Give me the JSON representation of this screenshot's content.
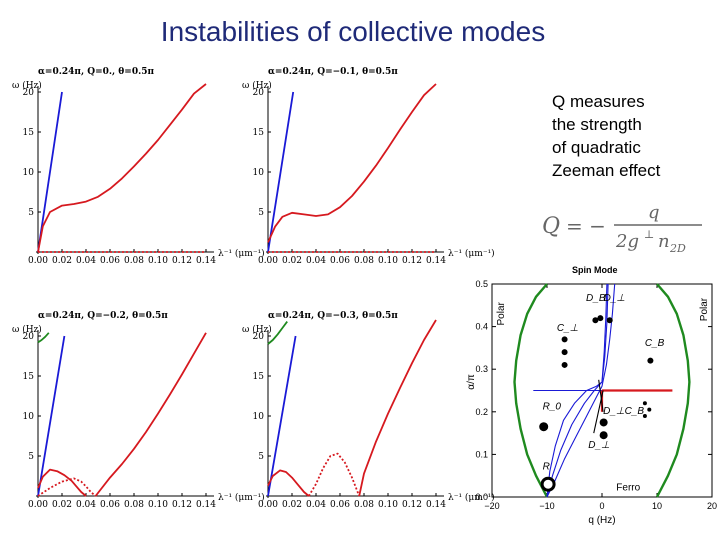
{
  "slide": {
    "title": "Instabilities of collective modes",
    "note_lines": [
      "Q measures",
      "the strength",
      "of quadratic",
      "Zeeman effect"
    ]
  },
  "formula": {
    "lhs": "Q",
    "eq": "= −",
    "numerator": "q",
    "den_main": "2g",
    "den_sup": "⊥",
    "den_n": "n",
    "den_sub": "2D"
  },
  "colors": {
    "blue": "#1a1ad6",
    "red": "#d6191f",
    "green": "#1f8a1f",
    "axis": "#000000"
  },
  "chart_data": [
    {
      "type": "line",
      "title": "α=0.24π, Q=0., θ=0.5π",
      "ylabel": "ω (Hz)",
      "xlabel": "λ⁻¹ (μm⁻¹)",
      "xlim": [
        0,
        0.14
      ],
      "ylim": [
        0,
        20
      ],
      "xticks": [
        "0.00",
        "0.02",
        "0.04",
        "0.06",
        "0.08",
        "0.10",
        "0.12",
        "0.14"
      ],
      "yticks": [
        "5",
        "10",
        "15",
        "20"
      ],
      "series": [
        {
          "color": "blue",
          "style": "solid",
          "x": [
            0,
            0.02
          ],
          "y": [
            0,
            20
          ]
        },
        {
          "color": "red",
          "style": "solid",
          "x": [
            0,
            0.004,
            0.01,
            0.02,
            0.03,
            0.04,
            0.05,
            0.06,
            0.07,
            0.08,
            0.09,
            0.1,
            0.11,
            0.12,
            0.13,
            0.14
          ],
          "y": [
            0,
            3.2,
            5.0,
            5.8,
            6.0,
            6.3,
            6.9,
            7.9,
            9.2,
            10.7,
            12.3,
            14.0,
            15.9,
            17.8,
            19.8,
            21.0
          ]
        },
        {
          "color": "red",
          "style": "dotted",
          "x": [
            0,
            0.14
          ],
          "y": [
            0,
            0
          ]
        }
      ]
    },
    {
      "type": "line",
      "title": "α=0.24π, Q=−0.1, θ=0.5π",
      "ylabel": "ω (Hz)",
      "xlabel": "λ⁻¹ (μm⁻¹)",
      "xlim": [
        0,
        0.14
      ],
      "ylim": [
        0,
        20
      ],
      "xticks": [
        "0.00",
        "0.02",
        "0.04",
        "0.06",
        "0.08",
        "0.10",
        "0.12",
        "0.14"
      ],
      "yticks": [
        "5",
        "10",
        "15",
        "20"
      ],
      "series": [
        {
          "color": "blue",
          "style": "solid",
          "x": [
            0,
            0.021
          ],
          "y": [
            0,
            20
          ]
        },
        {
          "color": "red",
          "style": "solid",
          "x": [
            0,
            0.006,
            0.012,
            0.02,
            0.03,
            0.04,
            0.05,
            0.06,
            0.07,
            0.08,
            0.09,
            0.1,
            0.11,
            0.12,
            0.13,
            0.14
          ],
          "y": [
            1.2,
            3.2,
            4.4,
            4.9,
            4.7,
            4.5,
            4.7,
            5.6,
            7.0,
            8.8,
            10.8,
            13.0,
            15.3,
            17.5,
            19.6,
            21.0
          ]
        },
        {
          "color": "red",
          "style": "dotted",
          "x": [
            0,
            0.14
          ],
          "y": [
            0,
            0
          ]
        }
      ]
    },
    {
      "type": "line",
      "title": "α=0.24π, Q=−0.2, θ=0.5π",
      "ylabel": "ω (Hz)",
      "xlabel": "λ⁻¹ (μm⁻¹)",
      "xlim": [
        0,
        0.14
      ],
      "ylim": [
        0,
        20
      ],
      "xticks": [
        "0.00",
        "0.02",
        "0.04",
        "0.06",
        "0.08",
        "0.10",
        "0.12",
        "0.14"
      ],
      "yticks": [
        "5",
        "10",
        "15",
        "20"
      ],
      "series": [
        {
          "color": "blue",
          "style": "solid",
          "x": [
            0,
            0.022
          ],
          "y": [
            0,
            20
          ]
        },
        {
          "color": "red",
          "style": "solid",
          "x": [
            0,
            0.004,
            0.01,
            0.016,
            0.022,
            0.028,
            0.032,
            0.036,
            0.04
          ],
          "y": [
            1.0,
            2.4,
            3.3,
            3.1,
            2.6,
            1.9,
            1.2,
            0.5,
            0
          ]
        },
        {
          "color": "red",
          "style": "dotted",
          "x": [
            0,
            0.01,
            0.02,
            0.03,
            0.036,
            0.04,
            0.044,
            0.048
          ],
          "y": [
            0,
            1.0,
            1.8,
            2.2,
            1.8,
            1.2,
            0.5,
            0
          ]
        },
        {
          "color": "red",
          "style": "solid",
          "x": [
            0.048,
            0.06,
            0.07,
            0.08,
            0.09,
            0.1,
            0.11,
            0.12,
            0.13,
            0.14
          ],
          "y": [
            0,
            2.3,
            4.0,
            5.9,
            8.0,
            10.3,
            12.7,
            15.2,
            17.8,
            20.4
          ]
        },
        {
          "color": "green",
          "style": "solid",
          "x": [
            0,
            0.003,
            0.006,
            0.009
          ],
          "y": [
            19.2,
            19.5,
            19.9,
            20.4
          ]
        }
      ]
    },
    {
      "type": "line",
      "title": "α=0.24π, Q=−0.3, θ=0.5π",
      "ylabel": "ω (Hz)",
      "xlabel": "λ⁻¹ (μm⁻¹)",
      "xlim": [
        0,
        0.14
      ],
      "ylim": [
        0,
        20
      ],
      "xticks": [
        "0.00",
        "0.02",
        "0.04",
        "0.06",
        "0.08",
        "0.10",
        "0.12",
        "0.14"
      ],
      "yticks": [
        "5",
        "10",
        "15",
        "20"
      ],
      "series": [
        {
          "color": "blue",
          "style": "solid",
          "x": [
            0,
            0.023
          ],
          "y": [
            0,
            20
          ]
        },
        {
          "color": "red",
          "style": "solid",
          "x": [
            0,
            0.004,
            0.01,
            0.015,
            0.02,
            0.025,
            0.03,
            0.034
          ],
          "y": [
            1.3,
            2.5,
            3.2,
            3.0,
            2.3,
            1.4,
            0.5,
            0
          ]
        },
        {
          "color": "red",
          "style": "dotted",
          "x": [
            0.034,
            0.04,
            0.046,
            0.052,
            0.058,
            0.064,
            0.07,
            0.076
          ],
          "y": [
            0,
            1.5,
            3.5,
            5.0,
            5.3,
            4.2,
            2.3,
            0
          ]
        },
        {
          "color": "red",
          "style": "solid",
          "x": [
            0.076,
            0.08,
            0.09,
            0.1,
            0.11,
            0.12,
            0.13,
            0.14
          ],
          "y": [
            0,
            2.8,
            6.8,
            10.3,
            13.5,
            16.6,
            19.5,
            22.0
          ]
        },
        {
          "color": "green",
          "style": "solid",
          "x": [
            0,
            0.004,
            0.008,
            0.012,
            0.016
          ],
          "y": [
            19.0,
            19.5,
            20.2,
            21.0,
            21.8
          ]
        }
      ]
    },
    {
      "type": "line",
      "title": "Spin Mode",
      "xlabel": "q (Hz)",
      "ylabel": "α/π",
      "xlim": [
        -20,
        20
      ],
      "ylim": [
        0,
        0.5
      ],
      "xticks": [
        "−20",
        "−10",
        "0",
        "10",
        "20"
      ],
      "yticks": [
        "0.0",
        "0.1",
        "0.2",
        "0.3",
        "0.4",
        "0.5"
      ],
      "region_labels": [
        "Polar",
        "Polar",
        "Ferro"
      ],
      "mode_labels": [
        "D_B",
        "D_⊥",
        "C_⊥",
        "C_B",
        "R_0",
        "D_⊥C_B",
        "D_⊥",
        "R"
      ],
      "series": [
        {
          "color": "green",
          "style": "solid",
          "x": [
            -10.0,
            -12.0,
            -13.6,
            -14.8,
            -15.6,
            -15.9,
            -15.6,
            -14.8,
            -13.6,
            -12.0,
            -10.0
          ],
          "y": [
            0.0,
            0.05,
            0.1,
            0.16,
            0.22,
            0.27,
            0.32,
            0.38,
            0.43,
            0.47,
            0.5
          ]
        },
        {
          "color": "green",
          "style": "solid",
          "x": [
            10.0,
            12.0,
            13.6,
            14.8,
            15.6,
            15.9,
            15.6,
            14.8,
            13.6,
            12.0,
            10.0
          ],
          "y": [
            0.0,
            0.05,
            0.1,
            0.16,
            0.22,
            0.27,
            0.32,
            0.38,
            0.43,
            0.47,
            0.5
          ]
        },
        {
          "color": "blue",
          "style": "solid",
          "x": [
            -12.5,
            12
          ],
          "y": [
            0.25,
            0.25
          ]
        },
        {
          "color": "red",
          "style": "solid",
          "x": [
            0,
            12.8
          ],
          "y": [
            0.25,
            0.25
          ]
        },
        {
          "color": "red",
          "style": "solid",
          "x": [
            0,
            0
          ],
          "y": [
            0.25,
            0.2
          ]
        },
        {
          "color": "blue",
          "style": "solid",
          "x": [
            -10,
            -8.5,
            -6.8,
            -4.8,
            -2.8,
            -1.2,
            0,
            0.8,
            1.4,
            1.9,
            2.3
          ],
          "y": [
            0.0,
            0.04,
            0.09,
            0.14,
            0.19,
            0.23,
            0.26,
            0.31,
            0.37,
            0.43,
            0.5
          ]
        },
        {
          "color": "blue",
          "style": "solid",
          "x": [
            -10,
            -9.0,
            -7.5,
            -5.5,
            -3.2,
            -1.4,
            0,
            0.5,
            0.9,
            1.1
          ],
          "y": [
            0.0,
            0.05,
            0.11,
            0.17,
            0.22,
            0.25,
            0.27,
            0.33,
            0.41,
            0.5
          ]
        },
        {
          "color": "blue",
          "style": "solid",
          "x": [
            -10,
            -9.5,
            -8.5,
            -7.0,
            -5.0,
            -2.8,
            -1.0,
            0
          ],
          "y": [
            0.0,
            0.06,
            0.12,
            0.18,
            0.22,
            0.25,
            0.26,
            0.27
          ]
        },
        {
          "color": "blue",
          "style": "solid",
          "x": [
            0,
            0.4,
            0.7,
            0.9
          ],
          "y": [
            0.27,
            0.34,
            0.42,
            0.5
          ]
        }
      ],
      "markers": [
        {
          "x": 0.3,
          "y": 0.175,
          "r": 4
        },
        {
          "x": 0.3,
          "y": 0.145,
          "r": 4
        },
        {
          "x": -1.2,
          "y": 0.415,
          "r": 3
        },
        {
          "x": -0.3,
          "y": 0.42,
          "r": 3
        },
        {
          "x": 1.4,
          "y": 0.415,
          "r": 3
        },
        {
          "x": -6.8,
          "y": 0.37,
          "r": 3
        },
        {
          "x": -6.8,
          "y": 0.34,
          "r": 3
        },
        {
          "x": -6.8,
          "y": 0.31,
          "r": 3
        },
        {
          "x": 8.8,
          "y": 0.32,
          "r": 3
        },
        {
          "x": 7.8,
          "y": 0.22,
          "r": 2
        },
        {
          "x": 8.6,
          "y": 0.205,
          "r": 2
        },
        {
          "x": 7.8,
          "y": 0.19,
          "r": 2
        },
        {
          "x": -10.6,
          "y": 0.165,
          "r": 4.5
        },
        {
          "x": -9.8,
          "y": 0.03,
          "r": 4.5,
          "hollow": true
        }
      ]
    }
  ]
}
